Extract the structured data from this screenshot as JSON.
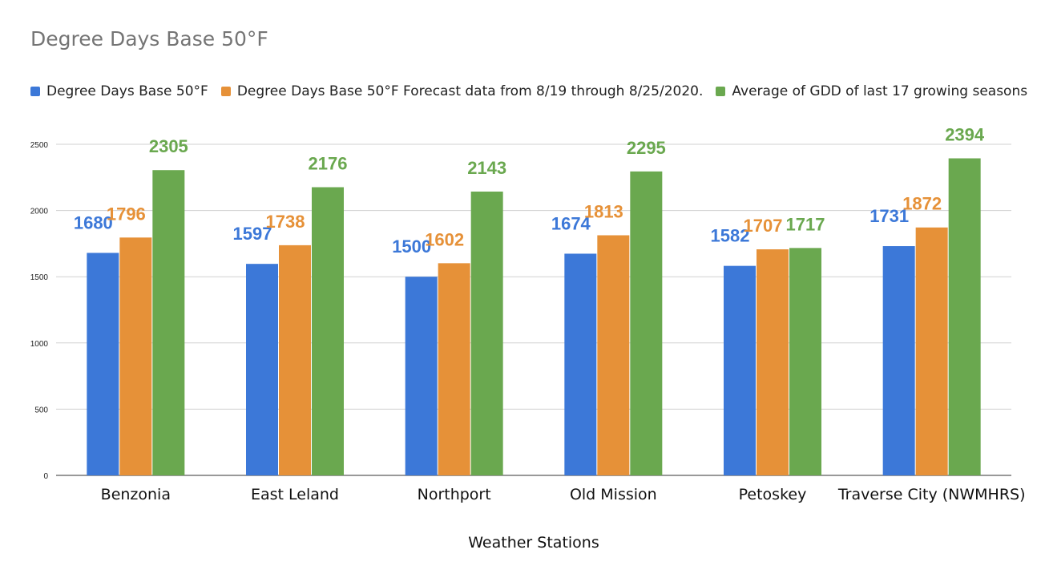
{
  "chart_data": {
    "type": "bar",
    "title": "Degree Days Base 50°F",
    "xlabel": "Weather Stations",
    "ylabel": "",
    "ylim": [
      0,
      2500
    ],
    "yticks": [
      0,
      500,
      1000,
      1500,
      2000,
      2500
    ],
    "grid": true,
    "legend_position": "top",
    "categories": [
      "Benzonia",
      "East Leland",
      "Northport",
      "Old Mission",
      "Petoskey",
      "Traverse City (NWMHRS)"
    ],
    "series": [
      {
        "name": "Degree Days Base 50°F",
        "color": "#3c78d8",
        "values": [
          1680,
          1597,
          1500,
          1674,
          1582,
          1731
        ]
      },
      {
        "name": "Degree Days Base 50°F Forecast data from 8/19 through 8/25/2020.",
        "color": "#e69138",
        "values": [
          1796,
          1738,
          1602,
          1813,
          1707,
          1872
        ]
      },
      {
        "name": "Average of GDD of last 17 growing seasons",
        "color": "#6aa84f",
        "values": [
          2305,
          2176,
          2143,
          2295,
          1717,
          2394
        ]
      }
    ]
  }
}
